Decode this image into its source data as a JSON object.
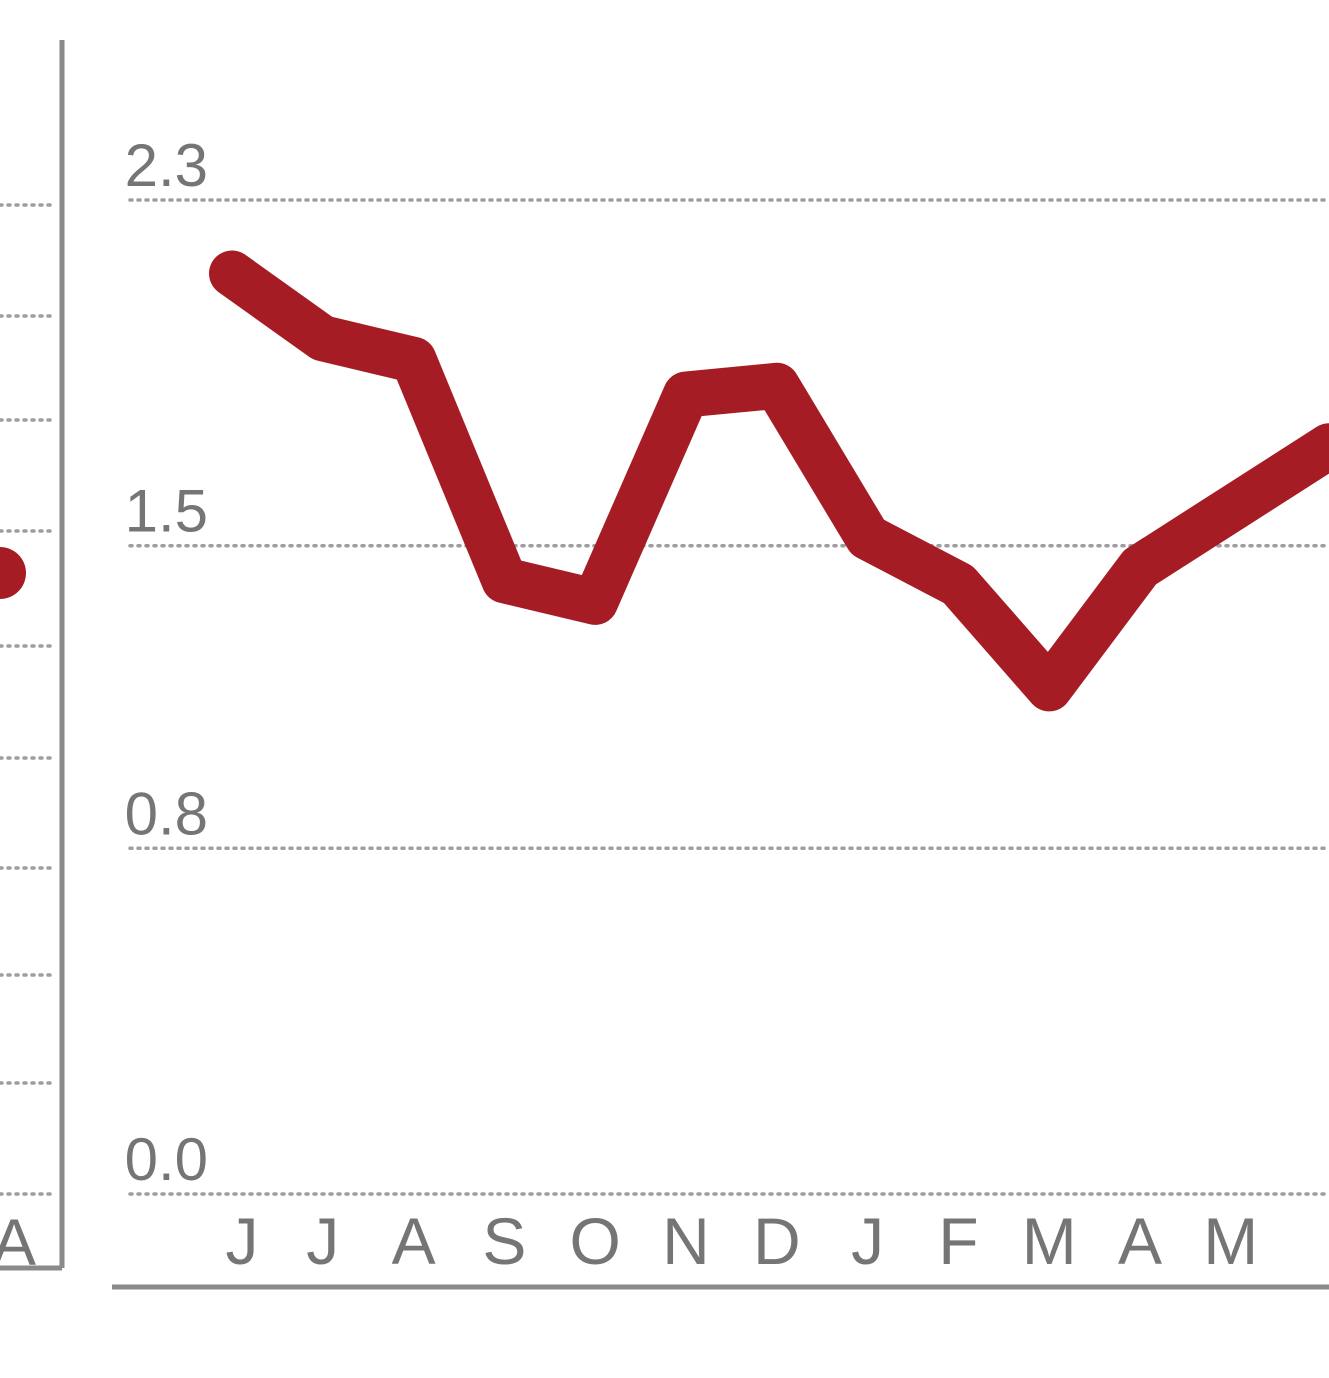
{
  "chart_data": [
    {
      "type": "line",
      "x": [
        "J",
        "J",
        "A",
        "S",
        "O",
        "N",
        "D",
        "J",
        "F",
        "M",
        "A",
        "M"
      ],
      "series": [
        {
          "values": [
            2.13,
            1.98,
            1.93,
            1.42,
            1.37,
            1.85,
            1.87,
            1.52,
            1.41,
            1.17,
            1.45,
            1.73
          ]
        }
      ],
      "y_ticks": [
        "2.3",
        "1.5",
        "0.8",
        "0.0"
      ],
      "ylim": [
        0,
        2.3
      ],
      "grid": "horizontal dotted",
      "colors": {
        "line": "#a61c24",
        "grid": "#9e9e9e",
        "text": "#757575",
        "frame": "#8a8a8a"
      }
    },
    {
      "type": "line",
      "x_visible_tick": "A",
      "series": [
        {
          "last_visible_value": 1.42
        }
      ]
    }
  ]
}
